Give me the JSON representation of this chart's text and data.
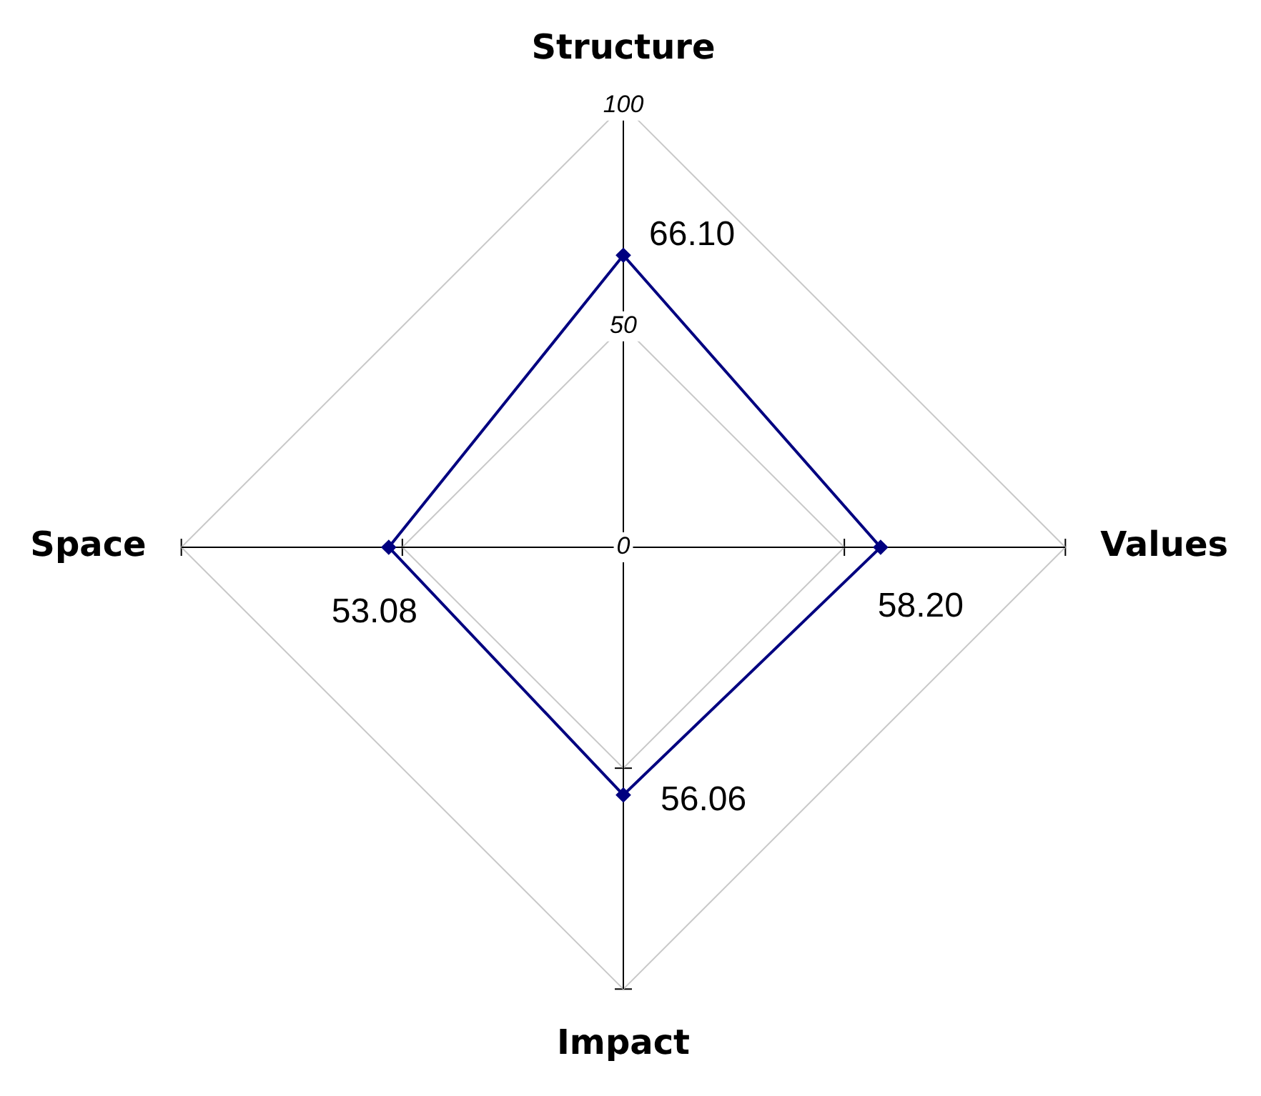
{
  "chart_data": {
    "type": "radar",
    "categories": [
      "Structure",
      "Values",
      "Impact",
      "Space"
    ],
    "series": [
      {
        "color": "#000080",
        "values": [
          66.1,
          58.2,
          56.06,
          53.08
        ],
        "value_labels": [
          "66.10",
          "58.20",
          "56.06",
          "53.08"
        ]
      }
    ],
    "ylim": [
      0,
      100
    ],
    "yticks": [
      0,
      50,
      100
    ],
    "grid": true,
    "marker": "diamond",
    "data_labels": true
  }
}
